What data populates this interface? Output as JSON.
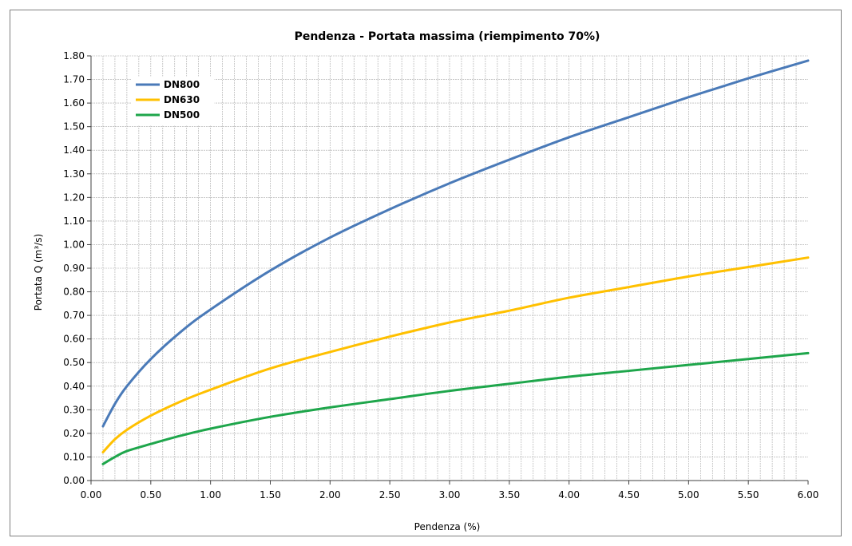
{
  "chart_data": {
    "type": "line",
    "title": "Pendenza - Portata massima (riempimento 70%)",
    "xlabel": "Pendenza (%)",
    "ylabel": "Portata Q (m³/s)",
    "xlim": [
      0,
      6
    ],
    "ylim": [
      0,
      1.8
    ],
    "x_ticks": [
      "0.00",
      "0.50",
      "1.00",
      "1.50",
      "2.00",
      "2.50",
      "3.00",
      "3.50",
      "4.00",
      "4.50",
      "5.00",
      "5.50",
      "6.00"
    ],
    "y_ticks": [
      "0.00",
      "0.10",
      "0.20",
      "0.30",
      "0.40",
      "0.50",
      "0.60",
      "0.70",
      "0.80",
      "0.90",
      "1.00",
      "1.10",
      "1.20",
      "1.30",
      "1.40",
      "1.50",
      "1.60",
      "1.70",
      "1.80"
    ],
    "grid": true,
    "legend_position": "top-left",
    "series": [
      {
        "name": "DN800",
        "color": "#4a7ab8",
        "x": [
          0.1,
          0.2,
          0.3,
          0.5,
          0.75,
          1.0,
          1.5,
          2.0,
          2.5,
          3.0,
          3.5,
          4.0,
          4.5,
          5.0,
          5.5,
          6.0
        ],
        "y": [
          0.23,
          0.325,
          0.4,
          0.515,
          0.63,
          0.725,
          0.89,
          1.03,
          1.15,
          1.26,
          1.36,
          1.455,
          1.54,
          1.625,
          1.705,
          1.78
        ]
      },
      {
        "name": "DN630",
        "color": "#ffc000",
        "x": [
          0.1,
          0.2,
          0.3,
          0.5,
          0.75,
          1.0,
          1.5,
          2.0,
          2.5,
          3.0,
          3.5,
          4.0,
          4.5,
          5.0,
          5.5,
          6.0
        ],
        "y": [
          0.12,
          0.175,
          0.215,
          0.275,
          0.335,
          0.385,
          0.475,
          0.545,
          0.61,
          0.67,
          0.72,
          0.775,
          0.82,
          0.865,
          0.905,
          0.945
        ]
      },
      {
        "name": "DN500",
        "color": "#1ea64b",
        "x": [
          0.1,
          0.2,
          0.3,
          0.5,
          0.75,
          1.0,
          1.5,
          2.0,
          2.5,
          3.0,
          3.5,
          4.0,
          4.5,
          5.0,
          5.5,
          6.0
        ],
        "y": [
          0.07,
          0.1,
          0.125,
          0.155,
          0.19,
          0.22,
          0.27,
          0.31,
          0.345,
          0.38,
          0.41,
          0.44,
          0.465,
          0.49,
          0.515,
          0.54
        ]
      }
    ]
  }
}
